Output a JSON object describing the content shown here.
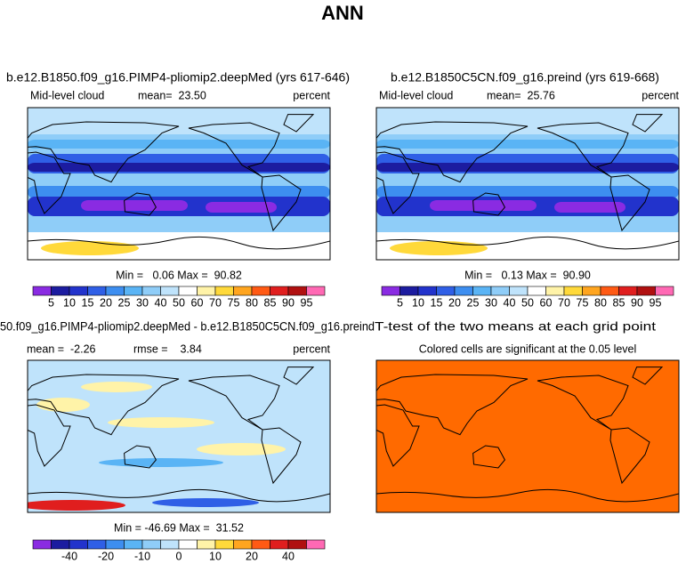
{
  "title": "ANN",
  "panels": [
    {
      "title": "b.e12.B1850.f09_g16.PIMP4-pliomip2.deepMed (yrs 617-646)",
      "left": "Mid-level cloud",
      "center": "mean=  23.50",
      "right": "percent",
      "stats": "Min =   0.06 Max =  90.82",
      "colorbar": {
        "labels": [
          "5",
          "10",
          "15",
          "20",
          "25",
          "30",
          "40",
          "50",
          "60",
          "70",
          "75",
          "80",
          "85",
          "90",
          "95"
        ],
        "colors": [
          "#8a2be2",
          "#1c1ca0",
          "#2233cc",
          "#2f5fe6",
          "#3d8ef0",
          "#5ab4f5",
          "#8fcdf8",
          "#bfe3fb",
          "#ffffff",
          "#fff3a8",
          "#ffd93a",
          "#ffa51f",
          "#ff5a14",
          "#e01e1e",
          "#b01010",
          "#ff69b4"
        ]
      }
    },
    {
      "title": "b.e12.B1850C5CN.f09_g16.preind (yrs 619-668)",
      "left": "Mid-level cloud",
      "center": "mean=  25.76",
      "right": "percent",
      "stats": "Min =   0.13 Max =  90.90",
      "colorbar": {
        "labels": [
          "5",
          "10",
          "15",
          "20",
          "25",
          "30",
          "40",
          "50",
          "60",
          "70",
          "75",
          "80",
          "85",
          "90",
          "95"
        ],
        "colors": [
          "#8a2be2",
          "#1c1ca0",
          "#2233cc",
          "#2f5fe6",
          "#3d8ef0",
          "#5ab4f5",
          "#8fcdf8",
          "#bfe3fb",
          "#ffffff",
          "#fff3a8",
          "#ffd93a",
          "#ffa51f",
          "#ff5a14",
          "#e01e1e",
          "#b01010",
          "#ff69b4"
        ]
      }
    },
    {
      "title": "50.f09_g16.PIMP4-pliomip2.deepMed - b.e12.B1850C5CN.f09_g16.preind",
      "left": "mean =  -2.26",
      "center": "rmse =    3.84",
      "right": "percent",
      "stats": "Min = -46.69 Max =  31.52",
      "colorbar": {
        "labels": [
          null,
          "-40",
          null,
          "-20",
          null,
          "-10",
          null,
          "0",
          null,
          "10",
          null,
          "20",
          null,
          "40",
          null
        ],
        "colors": [
          "#8a2be2",
          "#1c1ca0",
          "#2233cc",
          "#2f5fe6",
          "#3d8ef0",
          "#5ab4f5",
          "#8fcdf8",
          "#bfe3fb",
          "#ffffff",
          "#fff3a8",
          "#ffd93a",
          "#ffa51f",
          "#ff5a14",
          "#e01e1e",
          "#b01010",
          "#ff69b4"
        ]
      }
    },
    {
      "title": "T-test of the two means at each grid point",
      "center": "Colored cells are significant at the 0.05 level",
      "color": "#ff6a00"
    }
  ]
}
